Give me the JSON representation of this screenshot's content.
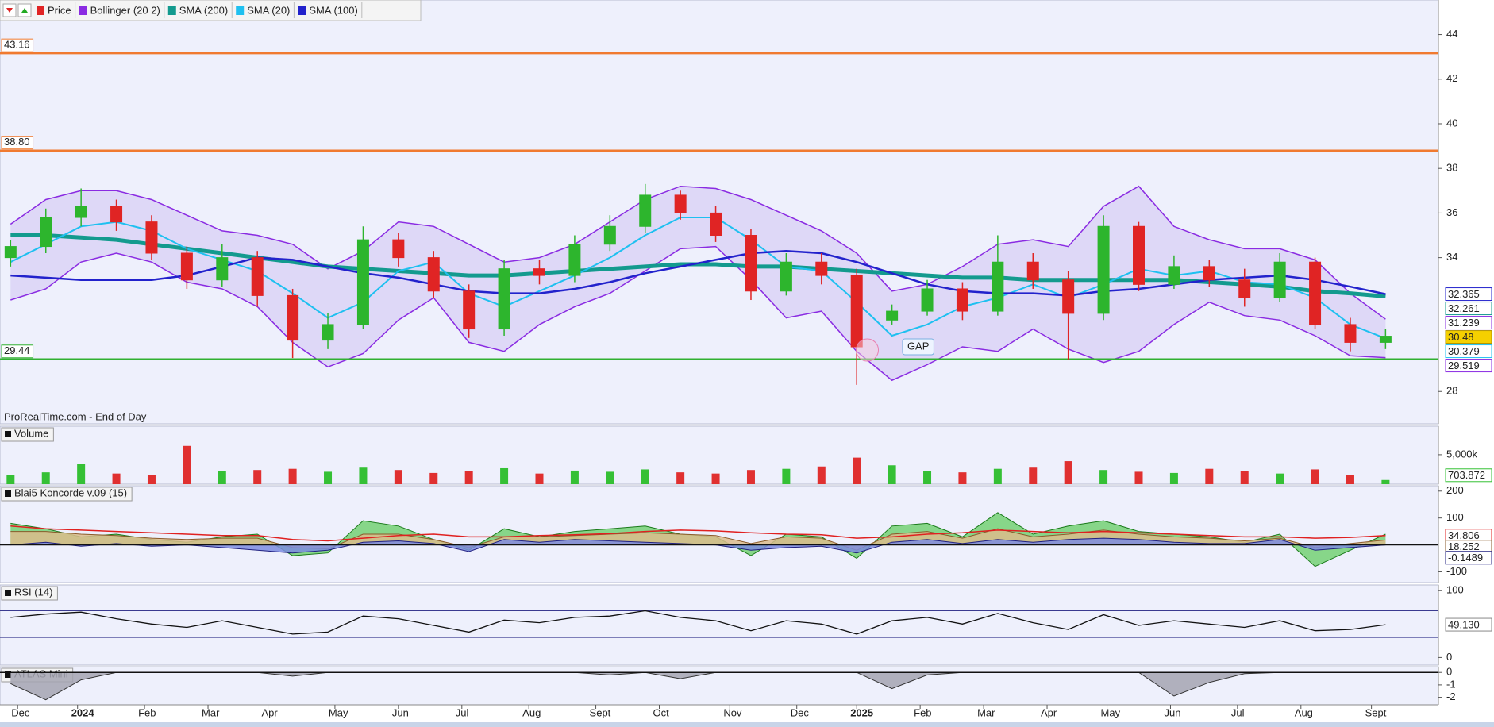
{
  "chart_data": [
    {
      "type": "candlestick",
      "name": "Price",
      "up_color": "#2db52d",
      "down_color": "#e02424",
      "label_color": "#f5d000",
      "open": [
        34.0,
        34.5,
        35.8,
        36.3,
        35.6,
        34.2,
        33.0,
        34.0,
        32.3,
        30.3,
        31.0,
        34.8,
        34.0,
        32.5,
        30.8,
        33.5,
        33.2,
        34.6,
        35.4,
        36.8,
        36.0,
        35.0,
        32.5,
        33.8,
        33.2,
        31.2,
        31.6,
        32.6,
        31.6,
        33.8,
        33.0,
        31.5,
        35.4,
        32.8,
        33.6,
        33.0,
        32.2,
        33.8,
        31.0,
        30.2
      ],
      "high": [
        34.8,
        36.2,
        37.1,
        36.6,
        35.9,
        34.5,
        34.6,
        34.3,
        32.6,
        31.5,
        35.4,
        35.1,
        34.3,
        32.8,
        33.9,
        33.9,
        35.0,
        35.9,
        37.3,
        37.0,
        36.3,
        35.3,
        34.2,
        34.2,
        33.5,
        31.9,
        33.0,
        32.9,
        35.0,
        34.2,
        33.4,
        35.9,
        35.6,
        34.1,
        33.9,
        33.5,
        34.2,
        34.0,
        31.3,
        30.8
      ],
      "low": [
        33.6,
        34.2,
        35.4,
        35.2,
        33.9,
        32.6,
        32.7,
        31.8,
        29.5,
        29.9,
        30.8,
        33.6,
        32.2,
        30.4,
        30.5,
        32.8,
        32.9,
        34.3,
        35.1,
        35.7,
        34.7,
        32.1,
        32.3,
        32.8,
        28.3,
        31.0,
        31.4,
        31.2,
        31.4,
        32.6,
        29.4,
        31.2,
        32.5,
        32.6,
        32.7,
        31.8,
        32.0,
        30.8,
        29.8,
        29.9
      ],
      "close": [
        34.5,
        35.8,
        36.3,
        35.6,
        34.2,
        33.0,
        34.0,
        32.3,
        30.3,
        31.0,
        34.8,
        34.0,
        32.5,
        30.8,
        33.5,
        33.2,
        34.6,
        35.4,
        36.8,
        36.0,
        35.0,
        32.5,
        33.8,
        33.2,
        30.0,
        31.6,
        32.6,
        31.6,
        33.8,
        33.0,
        31.5,
        35.4,
        32.8,
        33.6,
        33.0,
        32.2,
        33.8,
        31.0,
        30.2,
        30.48
      ],
      "overlays": [
        {
          "name": "Bollinger (20 2)",
          "color": "#8a2be2",
          "fill": "#d9d2f5",
          "width": 1.5,
          "last_value_label": true,
          "upper": [
            35.5,
            36.6,
            37.0,
            37.0,
            36.6,
            35.9,
            35.2,
            35.0,
            34.6,
            33.5,
            34.3,
            35.6,
            35.4,
            34.6,
            33.8,
            34.0,
            34.6,
            35.6,
            36.6,
            37.2,
            37.1,
            36.6,
            35.9,
            35.2,
            34.2,
            32.5,
            32.8,
            33.6,
            34.6,
            34.8,
            34.5,
            36.3,
            37.2,
            35.4,
            34.8,
            34.4,
            34.4,
            33.9,
            32.4,
            31.239
          ],
          "lower": [
            32.1,
            32.6,
            33.8,
            34.2,
            33.8,
            32.9,
            32.6,
            31.8,
            30.2,
            29.1,
            29.7,
            31.2,
            32.2,
            30.2,
            29.8,
            31.0,
            31.8,
            32.4,
            33.4,
            34.4,
            34.5,
            33.0,
            31.3,
            31.6,
            29.8,
            28.5,
            29.2,
            30.0,
            29.8,
            30.8,
            29.9,
            29.3,
            29.8,
            31.0,
            32.0,
            31.4,
            31.2,
            30.5,
            29.6,
            29.519
          ]
        },
        {
          "name": "SMA (200)",
          "color": "#139a8e",
          "width": 5,
          "last_value_label": true,
          "values": [
            35.0,
            35.0,
            34.9,
            34.8,
            34.6,
            34.4,
            34.2,
            34.0,
            33.8,
            33.6,
            33.5,
            33.4,
            33.3,
            33.2,
            33.2,
            33.3,
            33.4,
            33.5,
            33.6,
            33.7,
            33.7,
            33.6,
            33.6,
            33.5,
            33.4,
            33.3,
            33.2,
            33.1,
            33.1,
            33.0,
            33.0,
            33.0,
            33.0,
            33.0,
            32.9,
            32.8,
            32.7,
            32.5,
            32.4,
            32.261
          ]
        },
        {
          "name": "SMA (20)",
          "color": "#1ec0f0",
          "width": 2,
          "last_value_label": true,
          "values": [
            33.8,
            34.6,
            35.4,
            35.6,
            35.2,
            34.4,
            33.9,
            33.4,
            32.4,
            31.3,
            32.0,
            33.4,
            33.8,
            32.4,
            31.8,
            32.5,
            33.2,
            34.0,
            35.0,
            35.8,
            35.8,
            34.8,
            33.6,
            33.4,
            32.0,
            30.5,
            31.0,
            31.8,
            32.2,
            32.8,
            32.2,
            32.8,
            33.5,
            33.2,
            33.4,
            32.9,
            32.8,
            32.2,
            31.0,
            30.379
          ]
        },
        {
          "name": "SMA (100)",
          "color": "#2222cc",
          "width": 2.5,
          "last_value_label": true,
          "values": [
            33.2,
            33.1,
            33.0,
            33.0,
            33.0,
            33.2,
            33.6,
            34.0,
            33.9,
            33.6,
            33.3,
            33.1,
            32.8,
            32.5,
            32.4,
            32.4,
            32.6,
            32.9,
            33.3,
            33.6,
            33.9,
            34.2,
            34.3,
            34.2,
            33.8,
            33.3,
            32.8,
            32.5,
            32.4,
            32.4,
            32.3,
            32.5,
            32.6,
            32.8,
            33.0,
            33.1,
            33.2,
            33.0,
            32.7,
            32.365
          ]
        }
      ],
      "levels": [
        {
          "value": 43.16,
          "color": "#f07a30"
        },
        {
          "value": 38.8,
          "label": "38.80",
          "color": "#f07a30"
        },
        {
          "value": 29.44,
          "color": "#30b030"
        }
      ],
      "xlim": [
        -0.3,
        40.5
      ],
      "xticks": [
        {
          "value": 0.2,
          "label": "Dec"
        },
        {
          "value": 1.9,
          "label": "2024"
        },
        {
          "value": 3.8,
          "label": "Feb"
        },
        {
          "value": 5.6,
          "label": "Mar"
        },
        {
          "value": 7.3,
          "label": "Apr"
        },
        {
          "value": 9.2,
          "label": "May"
        },
        {
          "value": 11.0,
          "label": "Jun"
        },
        {
          "value": 12.8,
          "label": "Jul"
        },
        {
          "value": 14.7,
          "label": "Aug"
        },
        {
          "value": 16.6,
          "label": "Sept"
        },
        {
          "value": 18.4,
          "label": "Oct"
        },
        {
          "value": 20.4,
          "label": "Nov"
        },
        {
          "value": 22.3,
          "label": "Dec"
        },
        {
          "value": 24.0,
          "label": "2025"
        },
        {
          "value": 25.8,
          "label": "Feb"
        },
        {
          "value": 27.6,
          "label": "Mar"
        },
        {
          "value": 29.4,
          "label": "Apr"
        },
        {
          "value": 31.1,
          "label": "May"
        },
        {
          "value": 32.9,
          "label": "Jun"
        },
        {
          "value": 34.8,
          "label": "Jul"
        },
        {
          "value": 36.6,
          "label": "Aug"
        },
        {
          "value": 38.6,
          "label": "Sept"
        }
      ],
      "ylim": [
        26.55,
        45.55
      ],
      "yticks": [
        28,
        34,
        36,
        38,
        40,
        42,
        44
      ],
      "source": "ProRealTime.com - End of Day",
      "annotation": "GAP"
    },
    {
      "type": "bar",
      "title": "Volume",
      "up_color": "#35c035",
      "down_color": "#e03030",
      "last_value_label": true,
      "values": [
        1500,
        2000,
        3500,
        1800,
        1600,
        6500,
        2200,
        2400,
        2600,
        2100,
        2800,
        2400,
        1900,
        2200,
        2700,
        1800,
        2300,
        2100,
        2500,
        2000,
        1800,
        2400,
        2600,
        3000,
        4500,
        3200,
        2200,
        2000,
        2600,
        2800,
        3900,
        2400,
        2100,
        1900,
        2600,
        2200,
        1800,
        2500,
        1600,
        703.872
      ],
      "ylim": [
        0,
        9840
      ],
      "yticks": [
        {
          "value": 5000,
          "label": "5,000k"
        }
      ]
    },
    {
      "type": "area",
      "title": "Blai5 Koncorde v.09 (15)",
      "ylim": [
        -140,
        220
      ],
      "yticks": [
        200,
        100,
        -100
      ],
      "series": [
        {
          "color": "#1a7a1a",
          "fill": "#74d174",
          "values": [
            80,
            60,
            30,
            40,
            20,
            10,
            30,
            40,
            -40,
            -30,
            90,
            70,
            20,
            -20,
            60,
            30,
            50,
            60,
            70,
            40,
            30,
            -40,
            40,
            30,
            -50,
            70,
            80,
            30,
            120,
            40,
            70,
            90,
            50,
            40,
            30,
            10,
            40,
            -80,
            -20,
            40
          ]
        },
        {
          "color": "#8a5a2a",
          "fill": "#dcbc8c",
          "last_value_label": true,
          "values": [
            50,
            50,
            40,
            35,
            25,
            20,
            25,
            25,
            -10,
            -15,
            40,
            40,
            20,
            -10,
            30,
            30,
            35,
            40,
            45,
            40,
            35,
            5,
            30,
            25,
            -20,
            40,
            50,
            25,
            60,
            30,
            40,
            55,
            40,
            30,
            25,
            15,
            25,
            -10,
            5,
            18.252
          ]
        },
        {
          "color": "#202080",
          "fill": "#7d8ce0",
          "last_value_label": true,
          "values": [
            0,
            10,
            -5,
            5,
            -5,
            0,
            -10,
            -20,
            -30,
            -20,
            10,
            15,
            5,
            -25,
            20,
            10,
            20,
            15,
            10,
            5,
            0,
            -20,
            -10,
            -5,
            -30,
            10,
            20,
            5,
            20,
            10,
            20,
            25,
            20,
            10,
            5,
            5,
            20,
            -20,
            -10,
            -0.1489
          ]
        },
        {
          "color": "#e02020",
          "last_value_label": true,
          "values": [
            70,
            60,
            55,
            50,
            45,
            40,
            35,
            35,
            20,
            15,
            25,
            35,
            40,
            30,
            30,
            35,
            38,
            42,
            50,
            55,
            52,
            45,
            40,
            38,
            25,
            30,
            40,
            45,
            55,
            50,
            45,
            50,
            45,
            40,
            35,
            30,
            30,
            25,
            28,
            34.806
          ]
        }
      ]
    },
    {
      "type": "line",
      "title": "RSI (14)",
      "ylim": [
        -11.4,
        108.6
      ],
      "yticks": [
        0,
        100
      ],
      "levels": [
        70,
        30
      ],
      "series": [
        {
          "color": "#111111",
          "values": [
            60,
            65,
            68,
            58,
            50,
            45,
            55,
            45,
            35,
            38,
            62,
            58,
            48,
            38,
            56,
            52,
            60,
            62,
            70,
            60,
            55,
            40,
            55,
            50,
            35,
            55,
            60,
            50,
            66,
            52,
            42,
            64,
            48,
            55,
            50,
            45,
            55,
            40,
            42,
            49.13
          ],
          "value_labels": [
            null,
            null,
            null,
            null,
            null,
            null,
            null,
            null,
            null,
            null,
            null,
            null,
            null,
            null,
            null,
            null,
            null,
            null,
            null,
            null,
            null,
            null,
            null,
            null,
            null,
            null,
            null,
            null,
            null,
            null,
            null,
            null,
            null,
            null,
            null,
            null,
            null,
            null,
            null,
            "49.130"
          ]
        }
      ]
    },
    {
      "type": "area",
      "title": "ATLAS Mini",
      "ylim": [
        -2.6,
        0.46
      ],
      "yticks": [
        0,
        -1,
        -2
      ],
      "series": [
        {
          "color": "#333333",
          "fill": "#a4a4b2",
          "values": [
            -0.9,
            -2.2,
            -0.6,
            0,
            0,
            0,
            0,
            0,
            -0.3,
            0,
            0,
            0,
            0,
            0,
            0,
            0,
            0,
            -0.2,
            0,
            -0.5,
            0,
            0,
            0,
            0,
            0,
            -1.3,
            -0.2,
            0,
            0,
            0,
            0,
            0,
            0,
            -1.9,
            -0.8,
            -0.1,
            0,
            0,
            0,
            0
          ]
        }
      ]
    }
  ]
}
